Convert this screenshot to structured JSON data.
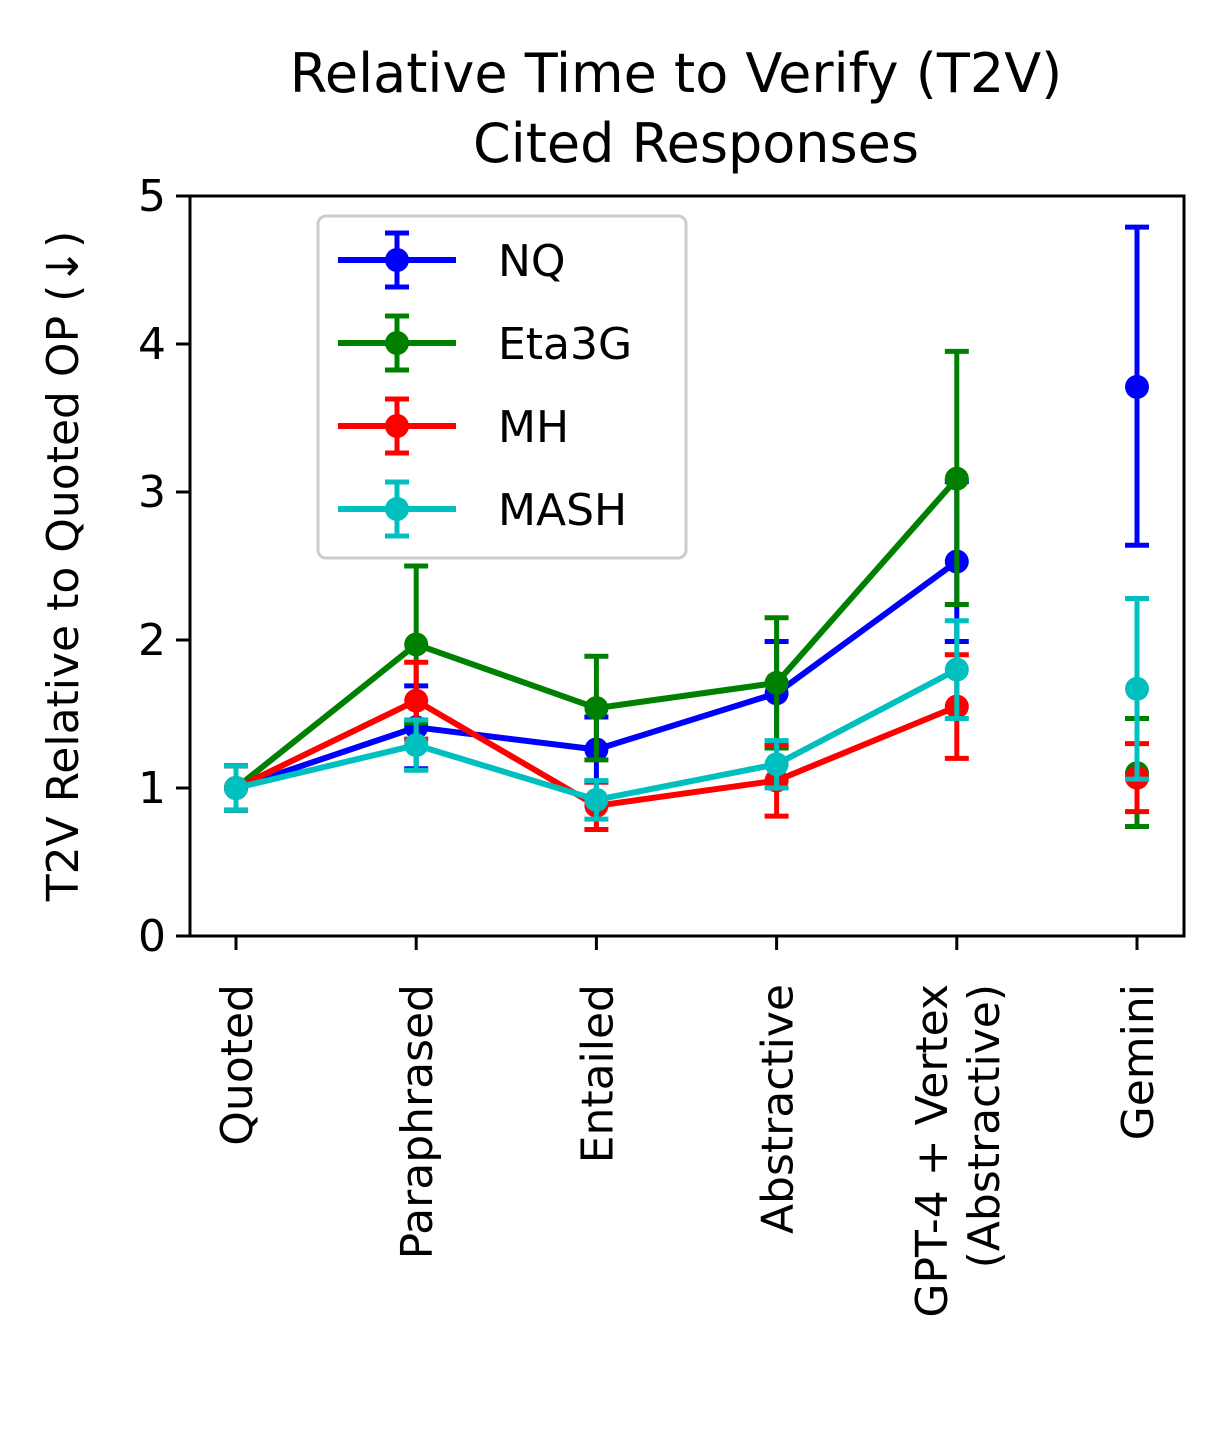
{
  "chart_data": {
    "type": "line",
    "title": [
      "Relative Time to Verify (T2V)",
      "Cited Responses"
    ],
    "ylabel": "T2V Relative to Quoted OP (↓)",
    "xlabel": "",
    "ylim": [
      0,
      5
    ],
    "yticks": [
      "0",
      "1",
      "2",
      "3",
      "4",
      "5"
    ],
    "categories": [
      "Quoted",
      "Paraphrased",
      "Entailed",
      "Abstractive",
      "GPT-4 + Vertex\n(Abstractive)",
      "Gemini"
    ],
    "connected_categories": 5,
    "legend_position": "upper-left",
    "grid": false,
    "series": [
      {
        "name": "NQ",
        "color": "#0000ff",
        "values": [
          1.0,
          1.41,
          1.26,
          1.64,
          2.53,
          3.71
        ],
        "err_low": [
          0.85,
          1.13,
          1.04,
          1.29,
          1.99,
          2.64
        ],
        "err_high": [
          1.15,
          1.69,
          1.48,
          1.99,
          3.07,
          4.79
        ]
      },
      {
        "name": "Eta3G",
        "color": "#008000",
        "values": [
          1.0,
          1.97,
          1.54,
          1.71,
          3.09,
          1.1
        ],
        "err_low": [
          0.85,
          1.44,
          1.19,
          1.27,
          2.24,
          0.74
        ],
        "err_high": [
          1.15,
          2.5,
          1.89,
          2.15,
          3.95,
          1.47
        ]
      },
      {
        "name": "MH",
        "color": "#ff0000",
        "values": [
          1.0,
          1.59,
          0.88,
          1.05,
          1.55,
          1.07
        ],
        "err_low": [
          0.85,
          1.33,
          0.72,
          0.81,
          1.2,
          0.84
        ],
        "err_high": [
          1.15,
          1.85,
          1.04,
          1.29,
          1.9,
          1.3
        ]
      },
      {
        "name": "MASH",
        "color": "#00bfbf",
        "values": [
          1.0,
          1.29,
          0.92,
          1.16,
          1.8,
          1.67
        ],
        "err_low": [
          0.85,
          1.12,
          0.79,
          1.0,
          1.47,
          1.06
        ],
        "err_high": [
          1.15,
          1.46,
          1.05,
          1.32,
          2.13,
          2.28
        ]
      }
    ]
  }
}
